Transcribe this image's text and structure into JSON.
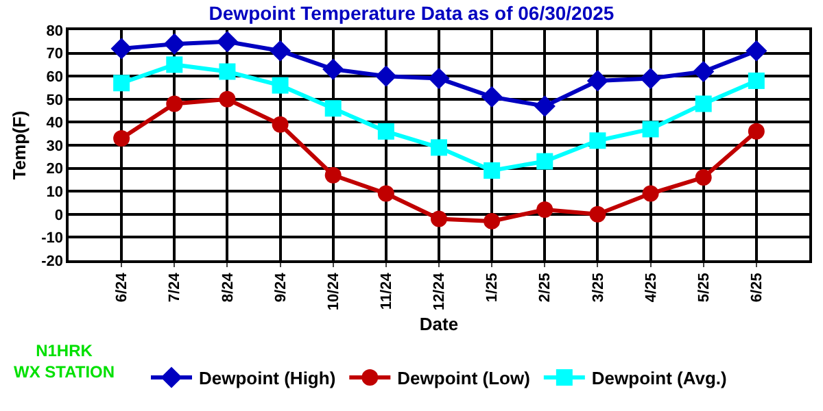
{
  "chart_data": {
    "type": "line",
    "title": "Dewpoint Temperature Data as of 06/30/2025",
    "xlabel": "Date",
    "ylabel": "Temp(F)",
    "categories": [
      "6/24",
      "7/24",
      "8/24",
      "9/24",
      "10/24",
      "11/24",
      "12/24",
      "1/25",
      "2/25",
      "3/25",
      "4/25",
      "5/25",
      "6/25"
    ],
    "series": [
      {
        "name": "Dewpoint (High)",
        "color": "#0000c0",
        "marker": "diamond",
        "values": [
          72,
          74,
          75,
          71,
          63,
          60,
          59,
          51,
          47,
          58,
          59,
          62,
          71
        ]
      },
      {
        "name": "Dewpoint (Low)",
        "color": "#c00000",
        "marker": "circle",
        "values": [
          33,
          48,
          50,
          39,
          17,
          9,
          -2,
          -3,
          2,
          0,
          9,
          16,
          36
        ]
      },
      {
        "name": "Dewpoint (Avg.)",
        "color": "#00ffff",
        "marker": "square",
        "values": [
          57,
          65,
          62,
          56,
          46,
          36,
          29,
          19,
          23,
          32,
          37,
          48,
          58
        ]
      }
    ],
    "ylim": [
      -20,
      80
    ],
    "yticks": [
      -20,
      -10,
      0,
      10,
      20,
      30,
      40,
      50,
      60,
      70,
      80
    ],
    "grid": true,
    "legend": "bottom",
    "line_style": "solid",
    "annotations": [
      "N1HRK\nWX STATION"
    ]
  }
}
